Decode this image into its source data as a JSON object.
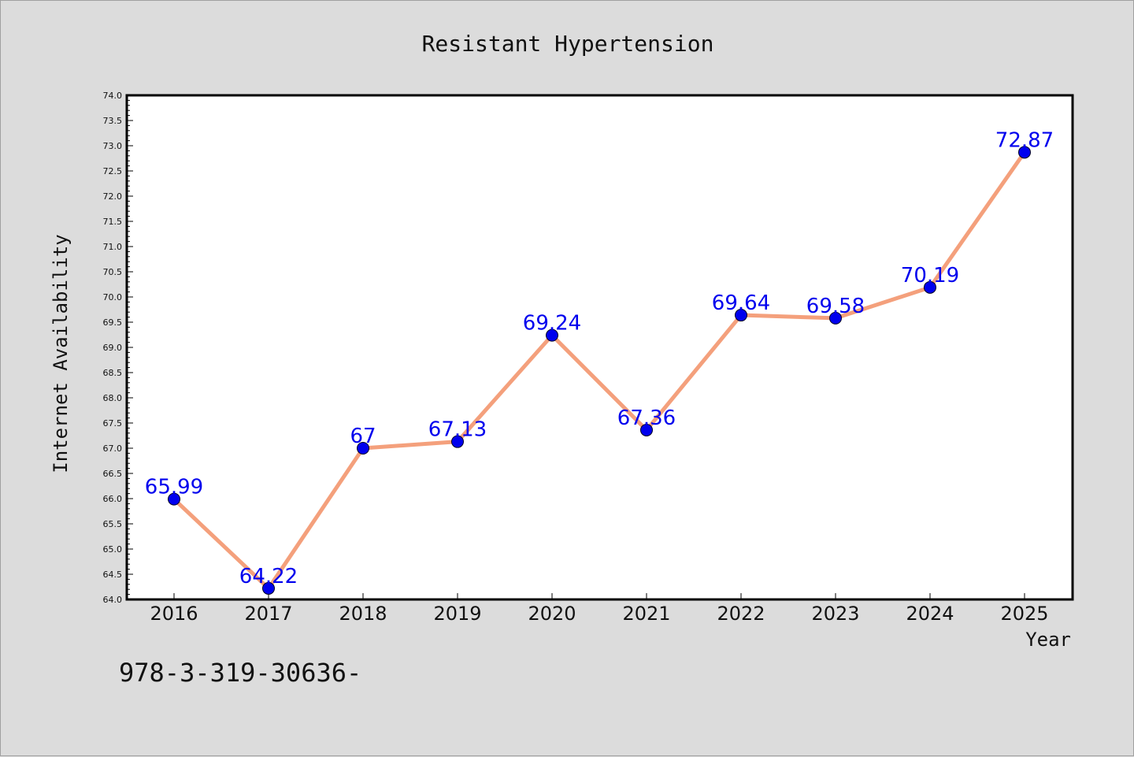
{
  "chart_data": {
    "type": "line",
    "title": "Resistant Hypertension",
    "xlabel": "Year",
    "ylabel": "Internet Availability",
    "categories": [
      "2016",
      "2017",
      "2018",
      "2019",
      "2020",
      "2021",
      "2022",
      "2023",
      "2024",
      "2025"
    ],
    "values": [
      65.99,
      64.22,
      67,
      67.13,
      69.24,
      67.36,
      69.64,
      69.58,
      70.19,
      72.87
    ],
    "data_labels": [
      "65.99",
      "64.22",
      "67",
      "67.13",
      "69.24",
      "67.36",
      "69.64",
      "69.58",
      "70.19",
      "72.87"
    ],
    "ylim": [
      64.0,
      74.0
    ],
    "yticks": [
      "64.0",
      "64.5",
      "65.0",
      "65.5",
      "66.0",
      "66.5",
      "67.0",
      "67.5",
      "68.0",
      "68.5",
      "69.0",
      "69.5",
      "70.0",
      "70.5",
      "71.0",
      "71.5",
      "72.0",
      "72.5",
      "73.0",
      "73.5",
      "74.0"
    ],
    "grid": false,
    "legend": "none",
    "colors": {
      "line": "#f4a07c",
      "marker": "#0000ee",
      "label": "#0000ee",
      "background": "#dcdcdc",
      "plot_background": "#ffffff"
    }
  },
  "footer": {
    "text": "978-3-319-30636-"
  }
}
